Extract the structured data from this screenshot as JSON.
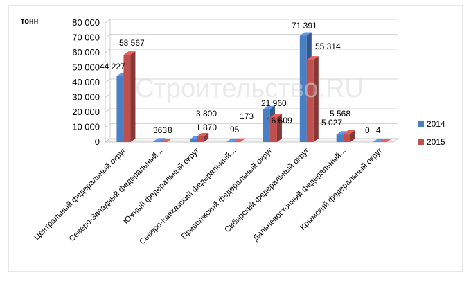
{
  "chart_data": {
    "type": "bar",
    "ylabel": "тонн",
    "ylim": [
      0,
      80000
    ],
    "yticks": [
      "0",
      "10 000",
      "20 000",
      "30 000",
      "40 000",
      "50 000",
      "60 000",
      "70 000",
      "80 000"
    ],
    "categories": [
      "Центральный федеральный округ",
      "Северо-Западный федеральный...",
      "Южный федеральный  округ",
      "Северо-Кавказский федеральный...",
      "Приволжский федеральный округ",
      "Сибирский федеральный округ",
      "Дальневосточный  федеральный...",
      "Крымский федеральный округ"
    ],
    "series": [
      {
        "name": "2014",
        "color": "#4a7fc3",
        "values": [
          44227,
          363,
          1870,
          95,
          21960,
          71391,
          5027,
          0
        ],
        "labels": [
          "44 227",
          "363",
          "1 870",
          "95",
          "21 960",
          "71 391",
          "5 027",
          "0"
        ]
      },
      {
        "name": "2015",
        "color": "#c0504d",
        "values": [
          58567,
          8,
          3800,
          173,
          16609,
          55314,
          5568,
          4
        ],
        "labels": [
          "58 567",
          "8",
          "3 800",
          "173",
          "16 609",
          "55 314",
          "5 568",
          "4"
        ]
      }
    ],
    "legend_position": "right",
    "grid": true,
    "watermark": "Строительство.RU"
  }
}
